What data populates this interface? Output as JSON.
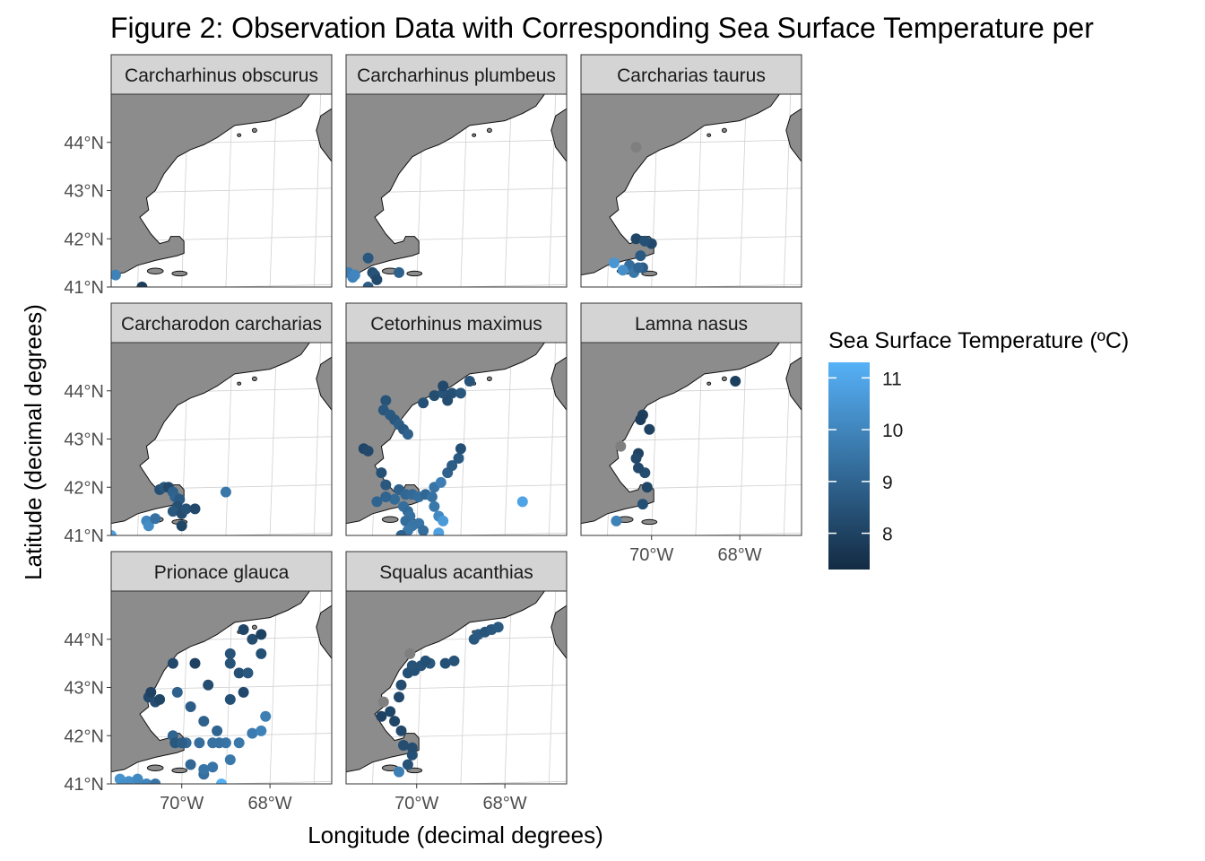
{
  "figure": {
    "title": "Figure 2: Observation Data with Corresponding Sea Surface Temperature per",
    "xlabel": "Longitude (decimal degrees)",
    "ylabel": "Latitude (decimal degrees)"
  },
  "colors": {
    "land": "#8c8c8c",
    "strip": "#d4d4d4",
    "grid": "#d0d0d0",
    "sst_low": "#132b43",
    "sst_high": "#56b1f7",
    "na_point": "#7f7f7f"
  },
  "chart_data": {
    "type": "scatter",
    "facet_by": "species",
    "x_field": "longitude (degrees east)",
    "y_field": "latitude (degrees north)",
    "color_field": "sea surface temperature (ºC)",
    "xlim": [
      -71.6,
      -66.6
    ],
    "ylim": [
      41.0,
      45.0
    ],
    "x_ticks": [
      -70,
      -68
    ],
    "x_tick_labels": [
      "70°W",
      "68°W"
    ],
    "y_ticks": [
      41,
      42,
      43,
      44
    ],
    "y_tick_labels": [
      "41°N",
      "42°N",
      "43°N",
      "44°N"
    ],
    "grid": true,
    "legend": {
      "title": "Sea Surface Temperature (ºC)",
      "position": "right",
      "range": [
        7.3,
        11.3
      ],
      "breaks": [
        8,
        9,
        10,
        11
      ],
      "break_labels": [
        "8",
        "9",
        "10",
        "11"
      ]
    },
    "panels": [
      {
        "species": "Carcharhinus obscurus",
        "points": [
          [
            -71.5,
            41.25,
            9.9
          ],
          [
            -70.9,
            41.0,
            7.8
          ]
        ]
      },
      {
        "species": "Carcharhinus plumbeus",
        "points": [
          [
            -71.55,
            41.3,
            9.8
          ],
          [
            -71.45,
            41.2,
            9.9
          ],
          [
            -71.4,
            41.25,
            10.0
          ],
          [
            -71.1,
            41.6,
            8.6
          ],
          [
            -71.0,
            41.3,
            8.3
          ],
          [
            -70.95,
            41.25,
            8.5
          ],
          [
            -70.9,
            41.15,
            8.2
          ],
          [
            -71.1,
            41.0,
            8.8
          ],
          [
            -70.4,
            41.3,
            8.9
          ]
        ]
      },
      {
        "species": "Carcharias taurus",
        "points": [
          [
            -70.35,
            43.9,
            null
          ],
          [
            -70.35,
            42.0,
            8.1
          ],
          [
            -70.0,
            41.9,
            8.2
          ],
          [
            -70.15,
            41.95,
            8.4
          ],
          [
            -70.25,
            41.65,
            8.7
          ],
          [
            -70.5,
            41.45,
            9.3
          ],
          [
            -70.65,
            41.35,
            10.3
          ],
          [
            -70.85,
            41.5,
            10.5
          ],
          [
            -70.2,
            41.4,
            8.8
          ],
          [
            -70.4,
            41.3,
            9.6
          ],
          [
            -70.3,
            41.4,
            9.1
          ]
        ]
      },
      {
        "species": "Carcharodon carcharias",
        "points": [
          [
            -71.6,
            41.0,
            10.7
          ],
          [
            -70.8,
            41.3,
            10.0
          ],
          [
            -70.75,
            41.2,
            10.2
          ],
          [
            -70.6,
            41.35,
            9.4
          ],
          [
            -70.5,
            41.95,
            8.4
          ],
          [
            -70.4,
            42.0,
            8.6
          ],
          [
            -70.3,
            42.0,
            8.2
          ],
          [
            -70.2,
            41.9,
            8.9
          ],
          [
            -70.15,
            41.8,
            9.0
          ],
          [
            -70.05,
            41.75,
            8.7
          ],
          [
            -70.1,
            41.6,
            8.4
          ],
          [
            -70.2,
            41.5,
            8.6
          ],
          [
            -70.0,
            41.45,
            8.3
          ],
          [
            -70.0,
            41.2,
            8.1
          ],
          [
            -69.9,
            41.55,
            8.5
          ],
          [
            -69.7,
            41.55,
            8.2
          ],
          [
            -69.0,
            41.9,
            9.6
          ]
        ]
      },
      {
        "species": "Cetorhinus maximus",
        "points": [
          [
            -70.7,
            43.8,
            8.5
          ],
          [
            -70.75,
            43.6,
            8.6
          ],
          [
            -70.6,
            43.5,
            8.7
          ],
          [
            -70.5,
            43.4,
            8.6
          ],
          [
            -70.4,
            43.3,
            8.8
          ],
          [
            -70.3,
            43.2,
            8.7
          ],
          [
            -70.2,
            43.1,
            8.9
          ],
          [
            -69.85,
            43.75,
            8.4
          ],
          [
            -69.6,
            43.9,
            8.3
          ],
          [
            -69.4,
            43.95,
            8.5
          ],
          [
            -69.2,
            43.95,
            8.4
          ],
          [
            -69.0,
            43.95,
            8.6
          ],
          [
            -68.8,
            44.2,
            8.5
          ],
          [
            -69.4,
            44.1,
            8.2
          ],
          [
            -69.3,
            43.8,
            8.3
          ],
          [
            -71.2,
            42.8,
            8.1
          ],
          [
            -71.1,
            42.75,
            8.2
          ],
          [
            -70.8,
            42.3,
            8.4
          ],
          [
            -70.7,
            42.05,
            8.6
          ],
          [
            -70.4,
            41.95,
            8.9
          ],
          [
            -70.25,
            41.85,
            9.1
          ],
          [
            -70.1,
            41.85,
            9.2
          ],
          [
            -69.95,
            41.8,
            9.3
          ],
          [
            -69.8,
            41.85,
            9.1
          ],
          [
            -69.65,
            41.8,
            9.4
          ],
          [
            -70.5,
            41.75,
            9.2
          ],
          [
            -70.7,
            41.8,
            9.0
          ],
          [
            -70.9,
            41.7,
            9.0
          ],
          [
            -70.3,
            41.6,
            9.3
          ],
          [
            -70.2,
            41.5,
            9.2
          ],
          [
            -70.15,
            41.4,
            9.4
          ],
          [
            -70.25,
            41.3,
            9.3
          ],
          [
            -70.1,
            41.2,
            9.5
          ],
          [
            -70.2,
            41.1,
            9.6
          ],
          [
            -69.95,
            41.25,
            9.5
          ],
          [
            -69.85,
            41.1,
            9.3
          ],
          [
            -69.6,
            41.6,
            9.6
          ],
          [
            -69.5,
            41.4,
            10.1
          ],
          [
            -69.4,
            41.3,
            10.6
          ],
          [
            -69.5,
            41.05,
            10.8
          ],
          [
            -69.6,
            42.0,
            9.5
          ],
          [
            -69.45,
            42.1,
            9.8
          ],
          [
            -69.3,
            42.3,
            8.9
          ],
          [
            -69.2,
            42.45,
            8.8
          ],
          [
            -69.05,
            42.6,
            8.7
          ],
          [
            -69.0,
            42.8,
            8.4
          ],
          [
            -70.35,
            41.0,
            8.9
          ],
          [
            -67.6,
            41.7,
            10.9
          ]
        ]
      },
      {
        "species": "Lamna nasus",
        "points": [
          [
            -70.7,
            42.85,
            null
          ],
          [
            -70.2,
            43.5,
            7.9
          ],
          [
            -70.25,
            43.4,
            7.8
          ],
          [
            -70.05,
            43.2,
            8.0
          ],
          [
            -70.3,
            42.7,
            8.0
          ],
          [
            -70.35,
            42.6,
            8.2
          ],
          [
            -70.15,
            42.3,
            8.3
          ],
          [
            -70.1,
            42.0,
            8.1
          ],
          [
            -70.2,
            41.65,
            8.4
          ],
          [
            -70.8,
            41.3,
            9.9
          ],
          [
            -68.1,
            44.2,
            7.9
          ],
          [
            -70.3,
            42.4,
            8.2
          ]
        ]
      },
      {
        "species": "Prionace glauca",
        "points": [
          [
            -71.4,
            41.1,
            10.4
          ],
          [
            -71.2,
            41.05,
            10.3
          ],
          [
            -71.0,
            41.1,
            10.1
          ],
          [
            -70.8,
            41.0,
            10.0
          ],
          [
            -70.6,
            41.0,
            9.5
          ],
          [
            -71.3,
            41.0,
            10.3
          ],
          [
            -69.1,
            41.0,
            11.2
          ],
          [
            -70.75,
            42.8,
            8.2
          ],
          [
            -70.7,
            42.9,
            8.0
          ],
          [
            -70.6,
            42.7,
            8.3
          ],
          [
            -70.5,
            42.75,
            8.1
          ],
          [
            -70.2,
            43.5,
            8.2
          ],
          [
            -69.7,
            43.5,
            8.0
          ],
          [
            -69.4,
            43.05,
            8.3
          ],
          [
            -68.9,
            42.75,
            8.4
          ],
          [
            -68.6,
            42.9,
            8.2
          ],
          [
            -68.9,
            43.5,
            8.5
          ],
          [
            -68.7,
            43.3,
            8.4
          ],
          [
            -68.5,
            43.3,
            8.6
          ],
          [
            -68.9,
            43.7,
            8.5
          ],
          [
            -68.4,
            44.0,
            8.3
          ],
          [
            -68.6,
            44.2,
            8.1
          ],
          [
            -68.2,
            44.1,
            8.0
          ],
          [
            -68.2,
            43.7,
            8.4
          ],
          [
            -70.1,
            42.9,
            8.9
          ],
          [
            -69.8,
            42.6,
            8.8
          ],
          [
            -69.5,
            42.3,
            8.9
          ],
          [
            -69.2,
            42.1,
            9.0
          ],
          [
            -70.2,
            42.0,
            9.0
          ],
          [
            -69.9,
            41.85,
            9.2
          ],
          [
            -69.6,
            41.85,
            9.3
          ],
          [
            -69.3,
            41.85,
            9.4
          ],
          [
            -69.0,
            41.85,
            9.5
          ],
          [
            -68.7,
            41.85,
            9.6
          ],
          [
            -68.4,
            42.05,
            9.7
          ],
          [
            -68.2,
            42.1,
            9.9
          ],
          [
            -68.1,
            42.4,
            9.8
          ],
          [
            -69.8,
            41.4,
            9.1
          ],
          [
            -69.5,
            41.2,
            9.3
          ],
          [
            -69.3,
            41.35,
            9.5
          ],
          [
            -68.9,
            41.5,
            9.6
          ],
          [
            -70.15,
            41.85,
            8.6
          ],
          [
            -70.0,
            41.85,
            8.8
          ],
          [
            -69.15,
            41.85,
            9.4
          ],
          [
            -69.5,
            41.3,
            9.5
          ]
        ]
      },
      {
        "species": "Squalus acanthias",
        "points": [
          [
            -70.75,
            42.7,
            null
          ],
          [
            -70.15,
            43.7,
            null
          ],
          [
            -70.8,
            42.4,
            8.0
          ],
          [
            -70.6,
            42.5,
            8.1
          ],
          [
            -70.4,
            42.8,
            8.2
          ],
          [
            -70.35,
            43.05,
            8.3
          ],
          [
            -70.2,
            43.3,
            8.4
          ],
          [
            -70.05,
            43.35,
            8.4
          ],
          [
            -69.9,
            43.45,
            8.5
          ],
          [
            -69.7,
            43.5,
            8.6
          ],
          [
            -69.35,
            43.5,
            8.4
          ],
          [
            -69.15,
            43.55,
            8.5
          ],
          [
            -68.7,
            44.0,
            8.6
          ],
          [
            -68.6,
            44.1,
            8.7
          ],
          [
            -68.45,
            44.15,
            8.5
          ],
          [
            -68.3,
            44.2,
            8.6
          ],
          [
            -68.15,
            44.25,
            8.7
          ],
          [
            -70.5,
            42.3,
            8.1
          ],
          [
            -70.35,
            42.1,
            8.2
          ],
          [
            -70.3,
            41.8,
            8.3
          ],
          [
            -70.1,
            41.6,
            8.4
          ],
          [
            -70.2,
            41.4,
            8.5
          ],
          [
            -70.4,
            41.25,
            9.8
          ],
          [
            -70.1,
            41.75,
            8.3
          ],
          [
            -70.1,
            43.45,
            8.5
          ],
          [
            -69.8,
            43.55,
            8.4
          ]
        ]
      }
    ]
  }
}
